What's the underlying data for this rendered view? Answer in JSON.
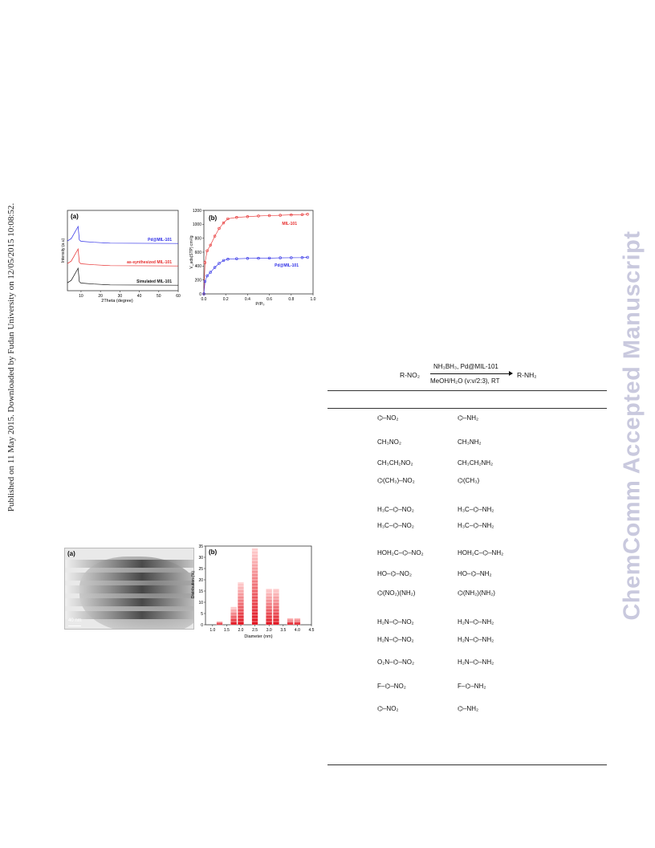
{
  "side_notice": "Published on 11 May 2015. Downloaded by Fudan University on 12/05/2015 10:08:52.",
  "watermark": "ChemComm Accepted Manuscript",
  "fig1": {
    "panel_a": {
      "label": "(a)",
      "ylabel": "Intensity (a.u)",
      "xlabel": "2Theta (degree)",
      "xticks": [
        "10",
        "20",
        "30",
        "40",
        "50",
        "60"
      ],
      "traces": [
        {
          "name": "Pd@MIL-101",
          "color": "#2a2ae6"
        },
        {
          "name": "as-synthesized MIL-101",
          "color": "#e62a2a"
        },
        {
          "name": "Simulated MIL-101",
          "color": "#111111"
        }
      ]
    },
    "panel_b": {
      "label": "(b)",
      "ylabel": "V_ads(STP) cm³/g",
      "xlabel": "P/P₀",
      "xticks": [
        "0.0",
        "0.2",
        "0.4",
        "0.6",
        "0.8",
        "1.0"
      ],
      "yticks": [
        "0",
        "200",
        "400",
        "600",
        "800",
        "1000",
        "1200"
      ],
      "series": [
        {
          "name": "MIL-101",
          "color": "#e62a2a"
        },
        {
          "name": "Pd@MIL-101",
          "color": "#2a2ae6"
        }
      ]
    }
  },
  "fig2": {
    "panel_a": {
      "label": "(a)",
      "scale": "40 nm"
    },
    "panel_b": {
      "label": "(b)"
    }
  },
  "chart_data": [
    {
      "type": "line",
      "title": "(a)",
      "xlabel": "2Theta (degree)",
      "ylabel": "Intensity (a.u)",
      "xlim": [
        3,
        60
      ],
      "series": [
        {
          "name": "Pd@MIL-101",
          "x": [
            3,
            5,
            8.5,
            9.1,
            10,
            16.5,
            25,
            60
          ],
          "y": [
            0.5,
            0.9,
            1.0,
            0.7,
            0.45,
            0.3,
            0.15,
            0.1
          ]
        },
        {
          "name": "as-synthesized MIL-101",
          "x": [
            3,
            5,
            8.5,
            9.1,
            10,
            16.5,
            25,
            60
          ],
          "y": [
            0.5,
            0.9,
            1.0,
            0.7,
            0.45,
            0.3,
            0.15,
            0.1
          ]
        },
        {
          "name": "Simulated MIL-101",
          "x": [
            3,
            5,
            8.5,
            9.1,
            10,
            16.5,
            25,
            60
          ],
          "y": [
            0.5,
            0.9,
            1.0,
            0.7,
            0.45,
            0.3,
            0.15,
            0.1
          ]
        }
      ]
    },
    {
      "type": "scatter",
      "title": "(b)",
      "xlabel": "P/P₀",
      "ylabel": "V_ads(STP) cm³/g",
      "xlim": [
        0,
        1
      ],
      "ylim": [
        0,
        1200
      ],
      "series": [
        {
          "name": "MIL-101",
          "x": [
            0.0,
            0.01,
            0.03,
            0.06,
            0.1,
            0.14,
            0.18,
            0.22,
            0.3,
            0.4,
            0.5,
            0.6,
            0.7,
            0.8,
            0.9,
            0.95
          ],
          "y": [
            0,
            450,
            620,
            700,
            830,
            940,
            1020,
            1080,
            1100,
            1110,
            1120,
            1125,
            1130,
            1135,
            1140,
            1145
          ]
        },
        {
          "name": "Pd@MIL-101",
          "x": [
            0.0,
            0.01,
            0.03,
            0.06,
            0.1,
            0.14,
            0.18,
            0.22,
            0.3,
            0.4,
            0.5,
            0.6,
            0.7,
            0.8,
            0.9,
            0.95
          ],
          "y": [
            0,
            180,
            260,
            310,
            380,
            440,
            480,
            500,
            505,
            510,
            512,
            515,
            518,
            520,
            522,
            525
          ]
        }
      ]
    },
    {
      "type": "bar",
      "title": "(b)",
      "xlabel": "Diameter (nm)",
      "ylabel": "Distribution (%)",
      "xticks": [
        "1.0",
        "1.5",
        "2.0",
        "2.5",
        "3.0",
        "3.5",
        "4.0",
        "4.5"
      ],
      "yticks": [
        "0",
        "5",
        "10",
        "15",
        "20",
        "25",
        "30",
        "35"
      ],
      "xlim": [
        0.75,
        4.5
      ],
      "ylim": [
        0,
        35
      ],
      "x": [
        1.25,
        1.75,
        2.0,
        2.5,
        3.0,
        3.25,
        3.75,
        4.0
      ],
      "values": [
        1.5,
        8,
        19,
        34,
        16,
        16,
        3,
        3
      ]
    }
  ],
  "scheme": {
    "reactant": "R-NO₂",
    "product": "R-NH₂",
    "above": "NH₃BH₃, Pd@MIL-101",
    "below": "MeOH/H₂O (v:v/2:3), RT"
  },
  "table_rows": [
    {
      "left": "⌬–NO₂",
      "right": "⌬–NH₂"
    },
    {
      "left": "CH₃NO₂",
      "right": "CH₃NH₂"
    },
    {
      "left": "CH₃CH₂NO₂",
      "right": "CH₃CH₂NH₂"
    },
    {
      "left": "⌬(CH₃)–NO₂",
      "right": "⌬(CH₃)"
    },
    {
      "left": "H₃C–⌬–NO₂",
      "right": "H₃C–⌬–NH₂"
    },
    {
      "left": "H₃C–⌬–NO₂",
      "right": "H₃C–⌬–NH₂"
    },
    {
      "left": "HOH₂C–⌬–NO₂",
      "right": "HOH₂C–⌬–NH₂"
    },
    {
      "left": "HO–⌬–NO₂",
      "right": "HO–⌬–NH₂"
    },
    {
      "left": "⌬(NO₂)(NH₂)",
      "right": "⌬(NH₂)(NH₂)"
    },
    {
      "left": "H₂N–⌬–NO₂",
      "right": "H₂N–⌬–NH₂"
    },
    {
      "left": "H₂N–⌬–NO₂",
      "right": "H₂N–⌬–NH₂"
    },
    {
      "left": "O₂N–⌬–NO₂",
      "right": "H₂N–⌬–NH₂"
    },
    {
      "left": "F–⌬–NO₂",
      "right": "F–⌬–NH₂"
    },
    {
      "left": "⌬–NO₂",
      "right": "⌬–NH₂"
    }
  ]
}
